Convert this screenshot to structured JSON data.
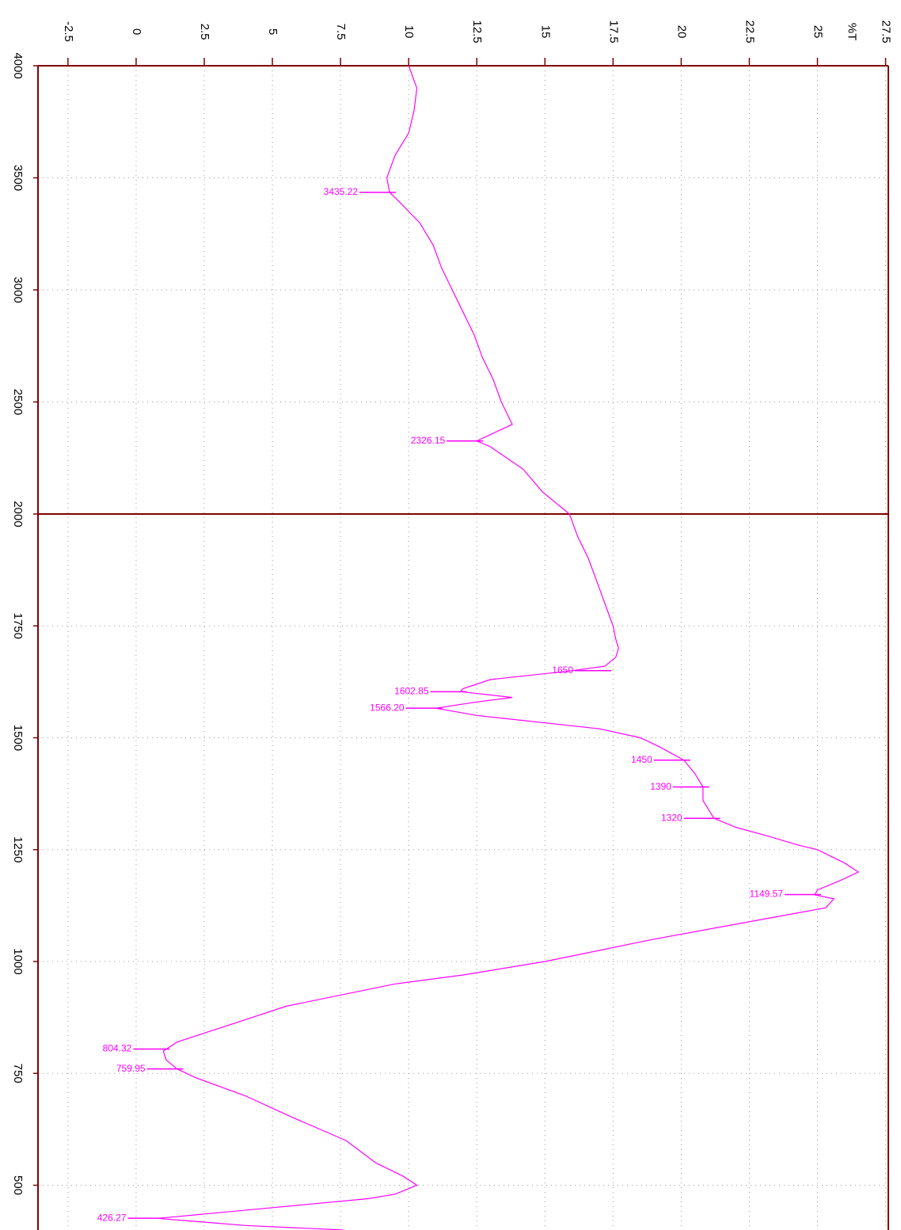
{
  "chart_data": {
    "type": "line",
    "y_title": "%T",
    "orientation": "rotated",
    "xlim": [
      4000,
      400
    ],
    "axis_break": 2000,
    "xticks": [
      4000,
      3500,
      3000,
      2500,
      2000,
      1750,
      1500,
      1250,
      1000,
      750,
      500
    ],
    "ylim": [
      -3.6,
      27.6
    ],
    "yticks": [
      -2.5,
      0,
      2.5,
      5,
      7.5,
      10,
      12.5,
      15,
      17.5,
      20,
      22.5,
      25,
      27.5
    ],
    "grid": true,
    "axis_color": "#800000",
    "series": [
      {
        "name": "%T",
        "color": "#ff00ff",
        "x": [
          4000,
          3900,
          3800,
          3700,
          3600,
          3500,
          3435,
          3400,
          3300,
          3200,
          3100,
          3000,
          2900,
          2800,
          2700,
          2600,
          2500,
          2400,
          2360,
          2326,
          2300,
          2250,
          2200,
          2100,
          2000,
          1950,
          1900,
          1850,
          1800,
          1750,
          1720,
          1700,
          1680,
          1660,
          1650,
          1630,
          1610,
          1603,
          1590,
          1580,
          1566,
          1550,
          1520,
          1500,
          1480,
          1450,
          1420,
          1390,
          1360,
          1320,
          1300,
          1280,
          1260,
          1250,
          1220,
          1200,
          1180,
          1160,
          1149,
          1140,
          1120,
          1100,
          1050,
          1000,
          970,
          950,
          900,
          850,
          820,
          800,
          780,
          760,
          740,
          700,
          650,
          600,
          550,
          520,
          500,
          480,
          470,
          450,
          426,
          410,
          400
        ],
        "values": [
          10.0,
          10.3,
          10.2,
          10.0,
          9.5,
          9.2,
          9.3,
          9.6,
          10.4,
          10.9,
          11.2,
          11.6,
          12.0,
          12.4,
          12.7,
          13.1,
          13.4,
          13.8,
          13.1,
          12.5,
          13.0,
          13.6,
          14.2,
          14.9,
          15.9,
          16.2,
          16.6,
          16.9,
          17.2,
          17.5,
          17.6,
          17.7,
          17.6,
          17.2,
          16.0,
          13.0,
          12.0,
          11.9,
          13.8,
          12.5,
          11.0,
          12.5,
          17.0,
          18.5,
          19.2,
          20.1,
          20.5,
          20.8,
          20.8,
          21.2,
          22.0,
          23.2,
          24.3,
          25.0,
          26.0,
          26.5,
          25.8,
          25.0,
          24.9,
          25.6,
          25.3,
          23.5,
          19.0,
          15.0,
          12.0,
          9.5,
          5.5,
          3.0,
          1.5,
          1.0,
          1.1,
          1.5,
          2.2,
          4.0,
          5.8,
          7.7,
          8.8,
          9.8,
          10.3,
          9.5,
          8.5,
          5.0,
          0.8,
          4.0,
          7.6
        ]
      }
    ],
    "annotations": [
      {
        "label": "3435.22",
        "x": 3435.22,
        "y": 9.3
      },
      {
        "label": "2326.15",
        "x": 2326.15,
        "y": 12.5
      },
      {
        "label": "1650",
        "x": 1650,
        "y": 17.2
      },
      {
        "label": "1602.85",
        "x": 1602.85,
        "y": 11.9
      },
      {
        "label": "1566.20",
        "x": 1566.2,
        "y": 11.0
      },
      {
        "label": "1450",
        "x": 1450,
        "y": 20.1
      },
      {
        "label": "1390",
        "x": 1390,
        "y": 20.8
      },
      {
        "label": "1320",
        "x": 1320,
        "y": 21.2
      },
      {
        "label": "1149.57",
        "x": 1149.57,
        "y": 24.9
      },
      {
        "label": "804.32",
        "x": 804.32,
        "y": 1.0
      },
      {
        "label": "759.95",
        "x": 759.95,
        "y": 1.5
      },
      {
        "label": "426.27",
        "x": 426.27,
        "y": 0.8
      }
    ]
  }
}
